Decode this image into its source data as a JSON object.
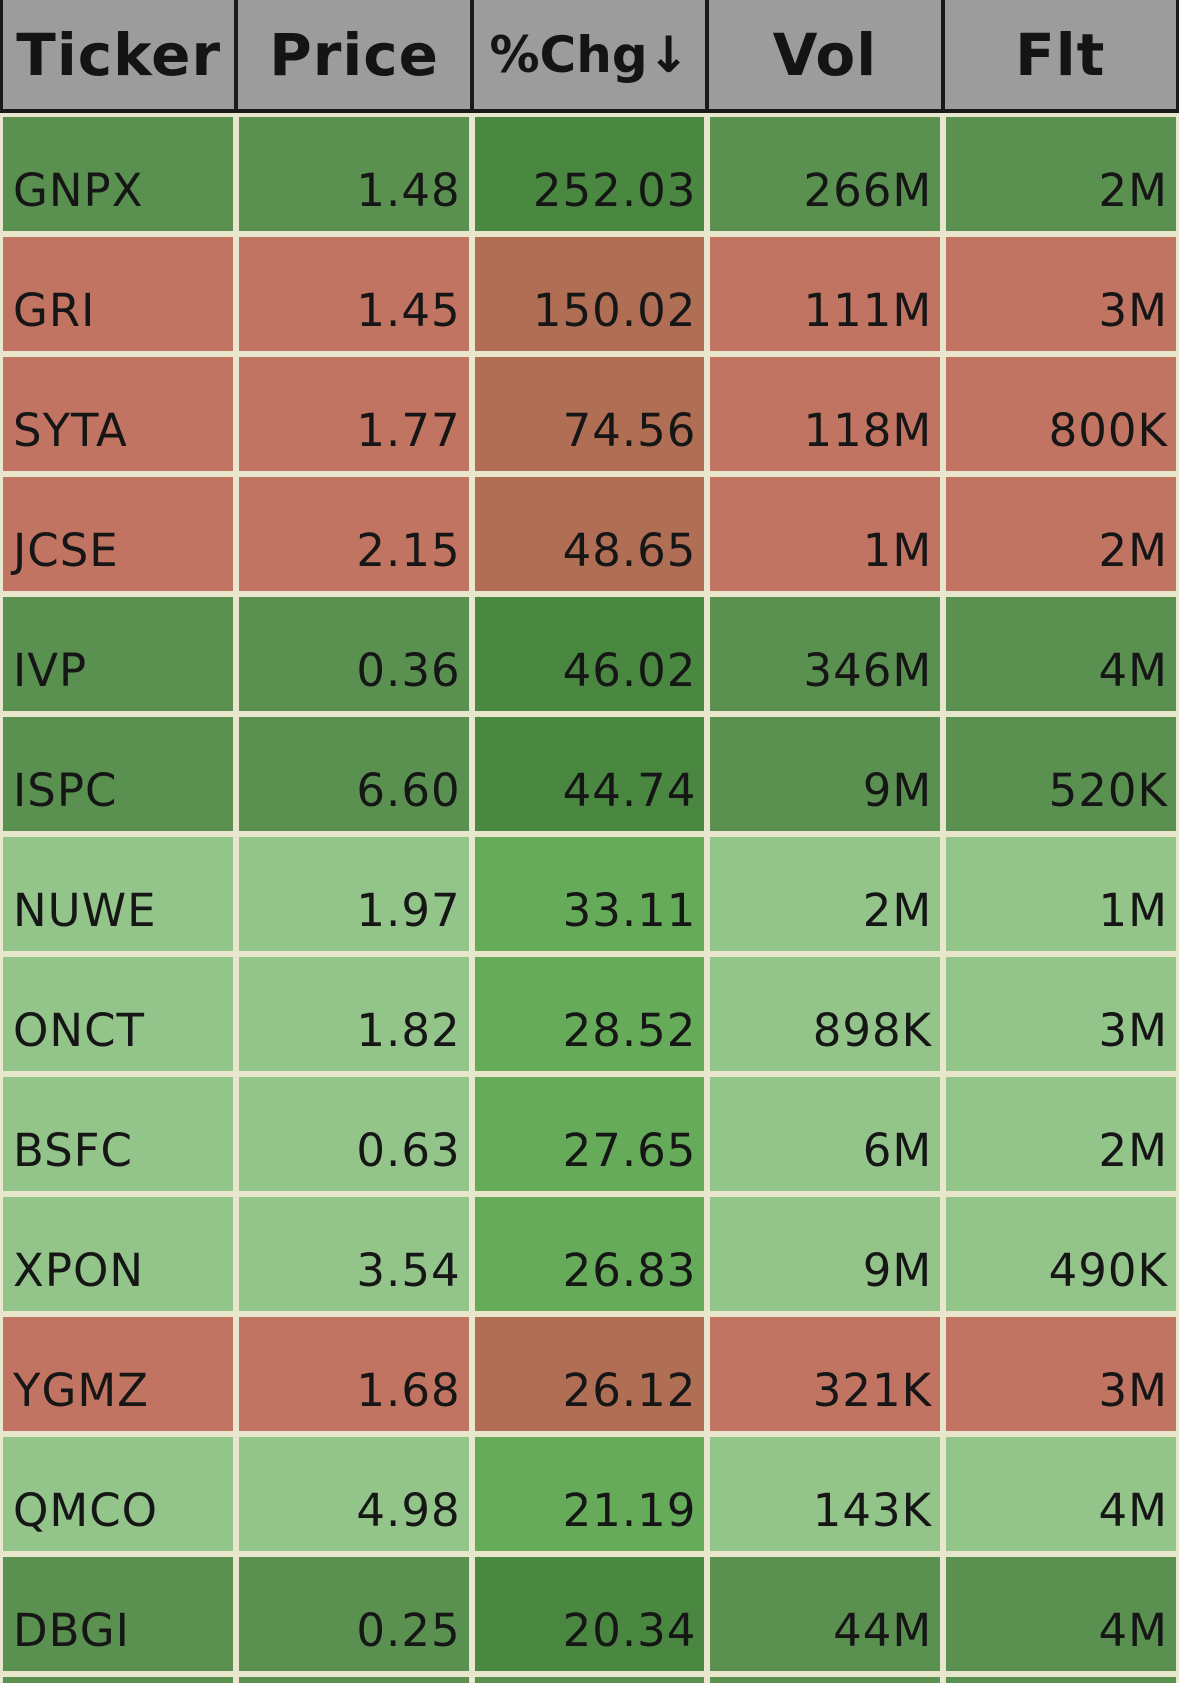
{
  "table": {
    "header": [
      "Ticker",
      "Price",
      "%Chg↓",
      "Vol",
      "Flt"
    ],
    "rows": [
      {
        "cells": [
          "GNPX",
          "1.48",
          "252.03",
          "266M",
          "2M"
        ],
        "color": "#5a9150",
        "highlight": "#4a8842"
      },
      {
        "cells": [
          "GRI",
          "1.45",
          "150.02",
          "111M",
          "3M"
        ],
        "color": "#c17461",
        "highlight": "#b06f55"
      },
      {
        "cells": [
          "SYTA",
          "1.77",
          "74.56",
          "118M",
          "800K"
        ],
        "color": "#c17461",
        "highlight": "#b06f55"
      },
      {
        "cells": [
          "JCSE",
          "2.15",
          "48.65",
          "1M",
          "2M"
        ],
        "color": "#c17461",
        "highlight": "#b06f55"
      },
      {
        "cells": [
          "IVP",
          "0.36",
          "46.02",
          "346M",
          "4M"
        ],
        "color": "#5a9150",
        "highlight": "#4a8842"
      },
      {
        "cells": [
          "ISPC",
          "6.60",
          "44.74",
          "9M",
          "520K"
        ],
        "color": "#5a9150",
        "highlight": "#4a8842"
      },
      {
        "cells": [
          "NUWE",
          "1.97",
          "33.11",
          "2M",
          "1M"
        ],
        "color": "#93c58a",
        "highlight": "#66ab5a"
      },
      {
        "cells": [
          "ONCT",
          "1.82",
          "28.52",
          "898K",
          "3M"
        ],
        "color": "#93c58a",
        "highlight": "#66ab5a"
      },
      {
        "cells": [
          "BSFC",
          "0.63",
          "27.65",
          "6M",
          "2M"
        ],
        "color": "#93c58a",
        "highlight": "#66ab5a"
      },
      {
        "cells": [
          "XPON",
          "3.54",
          "26.83",
          "9M",
          "490K"
        ],
        "color": "#93c58a",
        "highlight": "#66ab5a"
      },
      {
        "cells": [
          "YGMZ",
          "1.68",
          "26.12",
          "321K",
          "3M"
        ],
        "color": "#c17461",
        "highlight": "#b06f55"
      },
      {
        "cells": [
          "QMCO",
          "4.98",
          "21.19",
          "143K",
          "4M"
        ],
        "color": "#93c58a",
        "highlight": "#66ab5a"
      },
      {
        "cells": [
          "DBGI",
          "0.25",
          "20.34",
          "44M",
          "4M"
        ],
        "color": "#5a9150",
        "highlight": "#4a8842"
      }
    ]
  }
}
